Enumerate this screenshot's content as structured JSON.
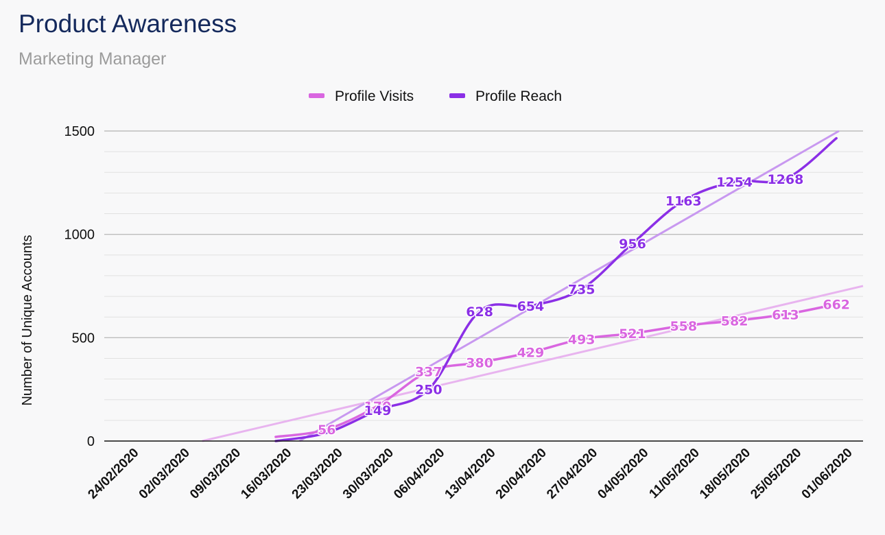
{
  "header": {
    "title": "Product Awareness",
    "subtitle": "Marketing Manager"
  },
  "chart_data": {
    "type": "line",
    "title": "Product Awareness",
    "subtitle": "Marketing Manager",
    "xlabel": "",
    "ylabel": "Number of Unique Accounts",
    "x": [
      "24/02/2020",
      "02/03/2020",
      "09/03/2020",
      "16/03/2020",
      "23/03/2020",
      "30/03/2020",
      "06/04/2020",
      "13/04/2020",
      "20/04/2020",
      "27/04/2020",
      "04/05/2020",
      "11/05/2020",
      "18/05/2020",
      "25/05/2020",
      "01/06/2020"
    ],
    "yticks": [
      "0",
      "500",
      "1000",
      "1500"
    ],
    "ylim": [
      0,
      1500
    ],
    "grid": true,
    "legend_position": "top",
    "series": [
      {
        "name": "Profile Visits",
        "color": "#d966e0",
        "trend_color": "#e8b4ef",
        "values": [
          null,
          null,
          null,
          20,
          56,
          170,
          337,
          380,
          429,
          493,
          521,
          558,
          582,
          613,
          662
        ],
        "labels": [
          "",
          "",
          "",
          "",
          "56",
          "170",
          "337",
          "380",
          "429",
          "493",
          "521",
          "558",
          "582",
          "613",
          "662"
        ]
      },
      {
        "name": "Profile Reach",
        "color": "#8b2fe6",
        "trend_color": "#c898f0",
        "values": [
          null,
          null,
          null,
          0,
          40,
          149,
          250,
          628,
          654,
          735,
          956,
          1163,
          1254,
          1268,
          1465
        ],
        "labels": [
          "",
          "",
          "",
          "",
          "",
          "149",
          "250",
          "628",
          "654",
          "735",
          "956",
          "1163",
          "1254",
          "1268",
          ""
        ]
      }
    ]
  }
}
